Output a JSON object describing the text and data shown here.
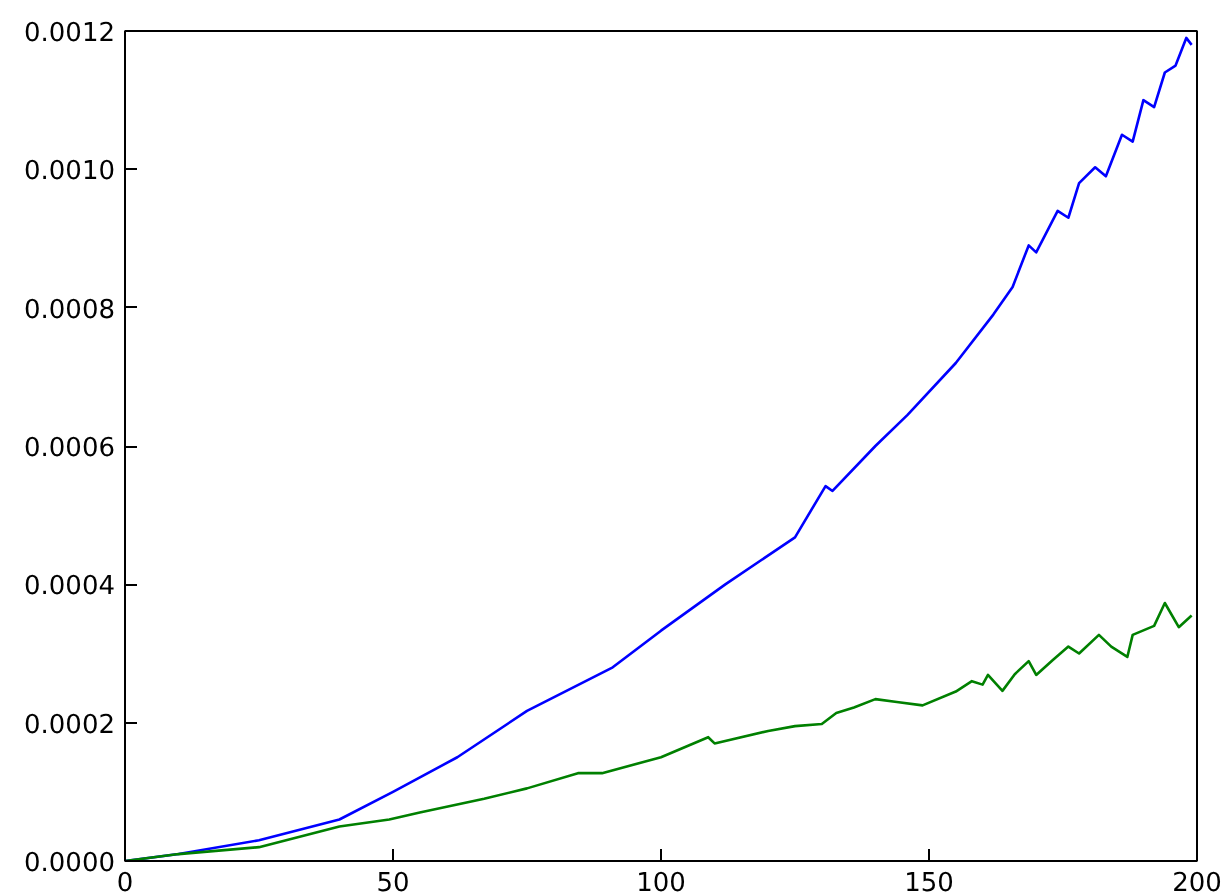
{
  "chart_data": {
    "type": "line",
    "xlim": [
      0,
      200
    ],
    "ylim": [
      0,
      0.0012
    ],
    "xticks": [
      0,
      50,
      100,
      150,
      200
    ],
    "yticks": [
      {
        "value": 0,
        "label": "0.0000"
      },
      {
        "value": 0.0002,
        "label": "0.0002"
      },
      {
        "value": 0.0004,
        "label": "0.0004"
      },
      {
        "value": 0.0006,
        "label": "0.0006"
      },
      {
        "value": 0.0008,
        "label": "0.0008"
      },
      {
        "value": 0.001,
        "label": "0.0010"
      },
      {
        "value": 0.0012,
        "label": "0.0012"
      }
    ],
    "grid": false,
    "marker": "none",
    "line_style": "solid",
    "series": [
      {
        "color": "#0000ff",
        "x": [
          0,
          10,
          25,
          40,
          50,
          62,
          75,
          91,
          100,
          112,
          125,
          130.7,
          132,
          140,
          146,
          155,
          162,
          165.6,
          168.6,
          170,
          174,
          176,
          178,
          181,
          183,
          186,
          188,
          190,
          192,
          194,
          196,
          198,
          199
        ],
        "values": [
          0,
          1e-05,
          3e-05,
          6e-05,
          0.0001,
          0.00015,
          0.000217,
          0.00028,
          0.000333,
          0.0004,
          0.000468,
          0.000542,
          0.000535,
          0.0006,
          0.000645,
          0.00072,
          0.00079,
          0.00083,
          0.00089,
          0.00088,
          0.00094,
          0.00093,
          0.00098,
          0.001003,
          0.00099,
          0.00105,
          0.00104,
          0.0011,
          0.00109,
          0.00114,
          0.00115,
          0.00119,
          0.00118
        ]
      },
      {
        "color": "#008000",
        "x": [
          0,
          10,
          25,
          40,
          49.3,
          55,
          67,
          75,
          84.5,
          89,
          100,
          108.8,
          110,
          120,
          125,
          130,
          132.7,
          136,
          140,
          144,
          148.8,
          155,
          158,
          160,
          161,
          163.7,
          166,
          168.6,
          170,
          173,
          176,
          178,
          181.7,
          184,
          187,
          188,
          192,
          194,
          196.6,
          199
        ],
        "values": [
          0,
          1e-05,
          2e-05,
          5e-05,
          6e-05,
          7e-05,
          9e-05,
          0.000105,
          0.000127,
          0.000127,
          0.00015,
          0.000179,
          0.00017,
          0.000188,
          0.000195,
          0.000198,
          0.000214,
          0.000222,
          0.000234,
          0.00023,
          0.000225,
          0.000245,
          0.00026,
          0.000255,
          0.000269,
          0.000246,
          0.00027,
          0.000289,
          0.000269,
          0.00029,
          0.00031,
          0.0003,
          0.000327,
          0.00031,
          0.000295,
          0.000327,
          0.00034,
          0.000373,
          0.000338,
          0.000355
        ]
      }
    ]
  }
}
